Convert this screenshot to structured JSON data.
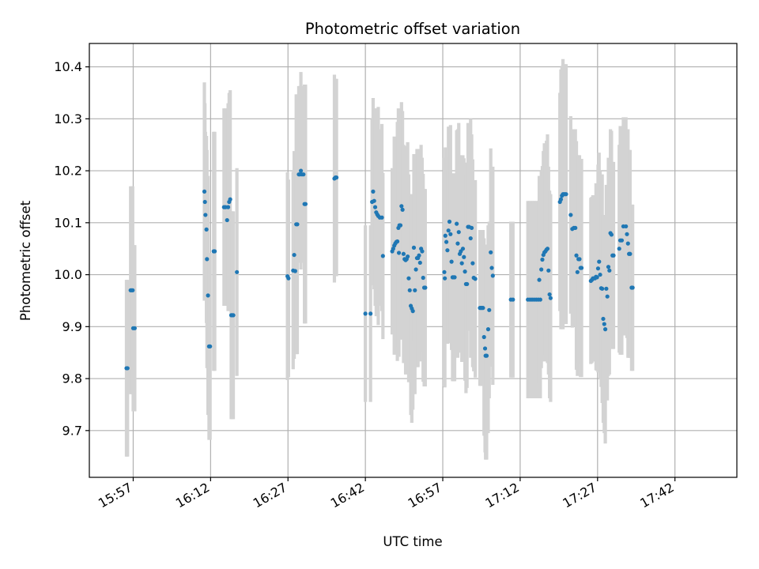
{
  "chart_data": {
    "type": "scatter",
    "title": "Photometric offset variation",
    "xlabel": "UTC time",
    "ylabel": "Photometric offset",
    "x_unit": "minutes since 00:00 UTC",
    "xlim": [
      948.5,
      1074
    ],
    "ylim": [
      9.61,
      10.445
    ],
    "grid": true,
    "x_ticks": [
      957,
      972,
      987,
      1002,
      1017,
      1032,
      1047,
      1062
    ],
    "x_tick_labels": [
      "15:57",
      "16:12",
      "16:27",
      "16:42",
      "16:57",
      "17:12",
      "17:27",
      "17:42"
    ],
    "y_ticks": [
      9.7,
      9.8,
      9.9,
      10.0,
      10.1,
      10.2,
      10.3,
      10.4
    ],
    "y_tick_labels": [
      "9.7",
      "9.8",
      "9.9",
      "10.0",
      "10.1",
      "10.2",
      "10.3",
      "10.4"
    ],
    "marker_color": "#1f77b4",
    "errorbar_color": "#d3d3d3",
    "series": [
      {
        "points": [
          [
            955.7,
            9.82,
            0.17
          ],
          [
            955.9,
            9.82,
            0.17
          ],
          [
            956.5,
            9.97,
            0.2
          ],
          [
            956.7,
            9.97,
            0.2
          ],
          [
            956.9,
            9.97,
            0.2
          ],
          [
            957.0,
            9.897,
            0.16
          ],
          [
            957.3,
            9.897,
            0.16
          ],
          [
            970.8,
            10.16,
            0.21
          ],
          [
            970.9,
            10.14,
            0.19
          ],
          [
            971.0,
            10.115,
            0.16
          ],
          [
            971.2,
            10.087,
            0.18
          ],
          [
            971.3,
            10.03,
            0.21
          ],
          [
            971.5,
            9.96,
            0.23
          ],
          [
            971.7,
            9.862,
            0.18
          ],
          [
            971.9,
            9.862,
            0.18
          ],
          [
            972.6,
            10.045,
            0.23
          ],
          [
            972.8,
            10.045,
            0.23
          ],
          [
            974.6,
            10.13,
            0.19
          ],
          [
            974.9,
            10.13,
            0.19
          ],
          [
            975.2,
            10.105,
            0.15
          ],
          [
            975.4,
            10.13,
            0.2
          ],
          [
            975.6,
            10.14,
            0.21
          ],
          [
            975.8,
            10.145,
            0.21
          ],
          [
            976.0,
            9.922,
            0.2
          ],
          [
            976.2,
            9.922,
            0.2
          ],
          [
            976.4,
            9.922,
            0.2
          ],
          [
            977.1,
            10.005,
            0.2
          ],
          [
            986.9,
            9.997,
            0.2
          ],
          [
            987.1,
            9.993,
            0.19
          ],
          [
            988.0,
            10.008,
            0.19
          ],
          [
            988.2,
            10.038,
            0.2
          ],
          [
            988.4,
            10.007,
            0.15
          ],
          [
            988.6,
            10.097,
            0.25
          ],
          [
            988.8,
            10.097,
            0.25
          ],
          [
            989.1,
            10.193,
            0.17
          ],
          [
            989.3,
            10.193,
            0.17
          ],
          [
            989.5,
            10.2,
            0.19
          ],
          [
            989.7,
            10.193,
            0.17
          ],
          [
            990.0,
            10.193,
            0.17
          ],
          [
            990.2,
            10.136,
            0.23
          ],
          [
            990.4,
            10.136,
            0.23
          ],
          [
            996.0,
            10.185,
            0.2
          ],
          [
            996.2,
            10.187,
            0.19
          ],
          [
            996.4,
            10.187,
            0.19
          ],
          [
            1002.0,
            9.925,
            0.17
          ],
          [
            1003.0,
            9.925,
            0.17
          ],
          [
            1003.3,
            10.14,
            0.16
          ],
          [
            1003.5,
            10.16,
            0.18
          ],
          [
            1003.7,
            10.142,
            0.17
          ],
          [
            1003.9,
            10.13,
            0.19
          ],
          [
            1004.1,
            10.12,
            0.2
          ],
          [
            1004.3,
            10.116,
            0.16
          ],
          [
            1004.5,
            10.113,
            0.21
          ],
          [
            1004.8,
            10.11,
            0.17
          ],
          [
            1005.2,
            10.11,
            0.18
          ],
          [
            1005.4,
            10.036,
            0.16
          ],
          [
            1007.2,
            10.045,
            0.16
          ],
          [
            1007.4,
            10.05,
            0.15
          ],
          [
            1007.6,
            10.056,
            0.21
          ],
          [
            1007.8,
            10.06,
            0.2
          ],
          [
            1008.0,
            10.063,
            0.19
          ],
          [
            1008.2,
            10.064,
            0.23
          ],
          [
            1008.4,
            10.09,
            0.23
          ],
          [
            1008.6,
            10.095,
            0.22
          ],
          [
            1008.8,
            10.095,
            0.22
          ],
          [
            1008.5,
            10.042,
            0.2
          ],
          [
            1009.0,
            10.132,
            0.2
          ],
          [
            1009.2,
            10.125,
            0.19
          ],
          [
            1009.4,
            10.04,
            0.21
          ],
          [
            1009.6,
            10.03,
            0.2
          ],
          [
            1009.8,
            10.028,
            0.22
          ],
          [
            1010.0,
            10.03,
            0.21
          ],
          [
            1010.2,
            10.035,
            0.22
          ],
          [
            1010.4,
            9.993,
            0.2
          ],
          [
            1010.6,
            9.97,
            0.17
          ],
          [
            1010.8,
            9.94,
            0.21
          ],
          [
            1011.0,
            9.935,
            0.22
          ],
          [
            1011.2,
            9.93,
            0.19
          ],
          [
            1011.4,
            10.052,
            0.18
          ],
          [
            1011.6,
            9.97,
            0.2
          ],
          [
            1011.8,
            10.01,
            0.16
          ],
          [
            1012.0,
            10.032,
            0.21
          ],
          [
            1012.2,
            10.032,
            0.21
          ],
          [
            1012.4,
            10.037,
            0.2
          ],
          [
            1012.6,
            10.023,
            0.19
          ],
          [
            1012.8,
            10.05,
            0.2
          ],
          [
            1013.0,
            10.045,
            0.18
          ],
          [
            1013.2,
            9.994,
            0.2
          ],
          [
            1013.4,
            9.975,
            0.19
          ],
          [
            1013.6,
            9.975,
            0.19
          ],
          [
            1017.5,
            10.075,
            0.17
          ],
          [
            1017.7,
            10.063,
            0.16
          ],
          [
            1017.9,
            10.047,
            0.18
          ],
          [
            1018.1,
            10.085,
            0.2
          ],
          [
            1018.3,
            10.102,
            0.17
          ],
          [
            1018.5,
            10.078,
            0.21
          ],
          [
            1018.7,
            10.025,
            0.17
          ],
          [
            1018.9,
            9.995,
            0.2
          ],
          [
            1019.1,
            9.995,
            0.2
          ],
          [
            1019.3,
            9.995,
            0.2
          ],
          [
            1017.3,
            10.005,
            0.22
          ],
          [
            1017.4,
            9.993,
            0.21
          ],
          [
            1019.7,
            10.098,
            0.18
          ],
          [
            1019.9,
            10.06,
            0.22
          ],
          [
            1020.1,
            10.082,
            0.21
          ],
          [
            1020.3,
            10.04,
            0.19
          ],
          [
            1020.5,
            10.045,
            0.18
          ],
          [
            1020.7,
            10.022,
            0.19
          ],
          [
            1020.9,
            10.05,
            0.18
          ],
          [
            1021.1,
            10.034,
            0.19
          ],
          [
            1021.3,
            10.006,
            0.21
          ],
          [
            1021.5,
            9.982,
            0.21
          ],
          [
            1021.7,
            9.982,
            0.2
          ],
          [
            1021.9,
            10.092,
            0.2
          ],
          [
            1022.1,
            10.092,
            0.19
          ],
          [
            1022.4,
            10.07,
            0.23
          ],
          [
            1022.6,
            10.09,
            0.18
          ],
          [
            1022.8,
            10.022,
            0.2
          ],
          [
            1023.0,
            9.994,
            0.18
          ],
          [
            1023.3,
            9.992,
            0.19
          ],
          [
            1024.2,
            9.936,
            0.15
          ],
          [
            1024.4,
            9.936,
            0.15
          ],
          [
            1024.6,
            9.936,
            0.15
          ],
          [
            1024.8,
            9.936,
            0.15
          ],
          [
            1025.0,
            9.88,
            0.19
          ],
          [
            1025.2,
            9.858,
            0.2
          ],
          [
            1025.3,
            9.844,
            0.2
          ],
          [
            1025.5,
            9.844,
            0.2
          ],
          [
            1025.8,
            9.895,
            0.2
          ],
          [
            1026.0,
            9.932,
            0.17
          ],
          [
            1026.3,
            10.043,
            0.2
          ],
          [
            1026.5,
            10.013,
            0.19
          ],
          [
            1026.7,
            9.998,
            0.21
          ],
          [
            1030.2,
            9.952,
            0.15
          ],
          [
            1030.6,
            9.952,
            0.15
          ],
          [
            1033.5,
            9.952,
            0.19
          ],
          [
            1033.9,
            9.952,
            0.19
          ],
          [
            1034.3,
            9.952,
            0.19
          ],
          [
            1034.7,
            9.952,
            0.19
          ],
          [
            1035.1,
            9.952,
            0.19
          ],
          [
            1035.5,
            9.952,
            0.19
          ],
          [
            1035.9,
            9.952,
            0.19
          ],
          [
            1035.7,
            9.99,
            0.2
          ],
          [
            1036.1,
            10.01,
            0.19
          ],
          [
            1036.3,
            10.029,
            0.18
          ],
          [
            1036.5,
            10.038,
            0.2
          ],
          [
            1036.7,
            10.043,
            0.21
          ],
          [
            1036.9,
            10.045,
            0.2
          ],
          [
            1037.1,
            10.048,
            0.21
          ],
          [
            1037.3,
            10.05,
            0.22
          ],
          [
            1037.5,
            10.008,
            0.2
          ],
          [
            1037.7,
            9.962,
            0.2
          ],
          [
            1037.9,
            9.955,
            0.2
          ],
          [
            1039.7,
            10.14,
            0.21
          ],
          [
            1039.9,
            10.145,
            0.25
          ],
          [
            1040.1,
            10.152,
            0.25
          ],
          [
            1040.3,
            10.155,
            0.26
          ],
          [
            1040.5,
            10.155,
            0.25
          ],
          [
            1040.7,
            10.155,
            0.25
          ],
          [
            1040.9,
            10.155,
            0.25
          ],
          [
            1041.8,
            10.115,
            0.19
          ],
          [
            1042.1,
            10.088,
            0.19
          ],
          [
            1042.4,
            10.09,
            0.19
          ],
          [
            1042.7,
            10.09,
            0.19
          ],
          [
            1042.9,
            10.037,
            0.22
          ],
          [
            1043.1,
            10.005,
            0.2
          ],
          [
            1043.3,
            10.03,
            0.2
          ],
          [
            1043.5,
            10.03,
            0.2
          ],
          [
            1043.7,
            10.013,
            0.21
          ],
          [
            1043.9,
            10.013,
            0.21
          ],
          [
            1045.7,
            9.988,
            0.16
          ],
          [
            1045.9,
            9.99,
            0.16
          ],
          [
            1046.1,
            9.993,
            0.16
          ],
          [
            1046.3,
            9.993,
            0.16
          ],
          [
            1046.5,
            9.993,
            0.16
          ],
          [
            1046.7,
            9.996,
            0.18
          ],
          [
            1046.9,
            9.995,
            0.18
          ],
          [
            1047.1,
            10.012,
            0.2
          ],
          [
            1047.3,
            10.025,
            0.21
          ],
          [
            1047.5,
            10.0,
            0.2
          ],
          [
            1047.7,
            9.974,
            0.19
          ],
          [
            1047.9,
            9.973,
            0.22
          ],
          [
            1048.1,
            9.915,
            0.2
          ],
          [
            1048.3,
            9.905,
            0.21
          ],
          [
            1048.5,
            9.895,
            0.22
          ],
          [
            1048.7,
            9.973,
            0.2
          ],
          [
            1048.9,
            9.958,
            0.2
          ],
          [
            1049.1,
            10.015,
            0.21
          ],
          [
            1049.3,
            10.008,
            0.2
          ],
          [
            1049.5,
            10.08,
            0.2
          ],
          [
            1049.7,
            10.077,
            0.2
          ],
          [
            1049.9,
            10.037,
            0.18
          ],
          [
            1050.1,
            10.037,
            0.18
          ],
          [
            1051.2,
            10.05,
            0.2
          ],
          [
            1051.4,
            10.066,
            0.22
          ],
          [
            1051.7,
            10.066,
            0.22
          ],
          [
            1052.0,
            10.093,
            0.21
          ],
          [
            1052.5,
            10.093,
            0.21
          ],
          [
            1052.7,
            10.078,
            0.2
          ],
          [
            1052.9,
            10.06,
            0.22
          ],
          [
            1053.1,
            10.04,
            0.2
          ],
          [
            1053.3,
            10.04,
            0.2
          ],
          [
            1053.6,
            9.975,
            0.16
          ],
          [
            1053.8,
            9.975,
            0.16
          ]
        ]
      }
    ]
  }
}
